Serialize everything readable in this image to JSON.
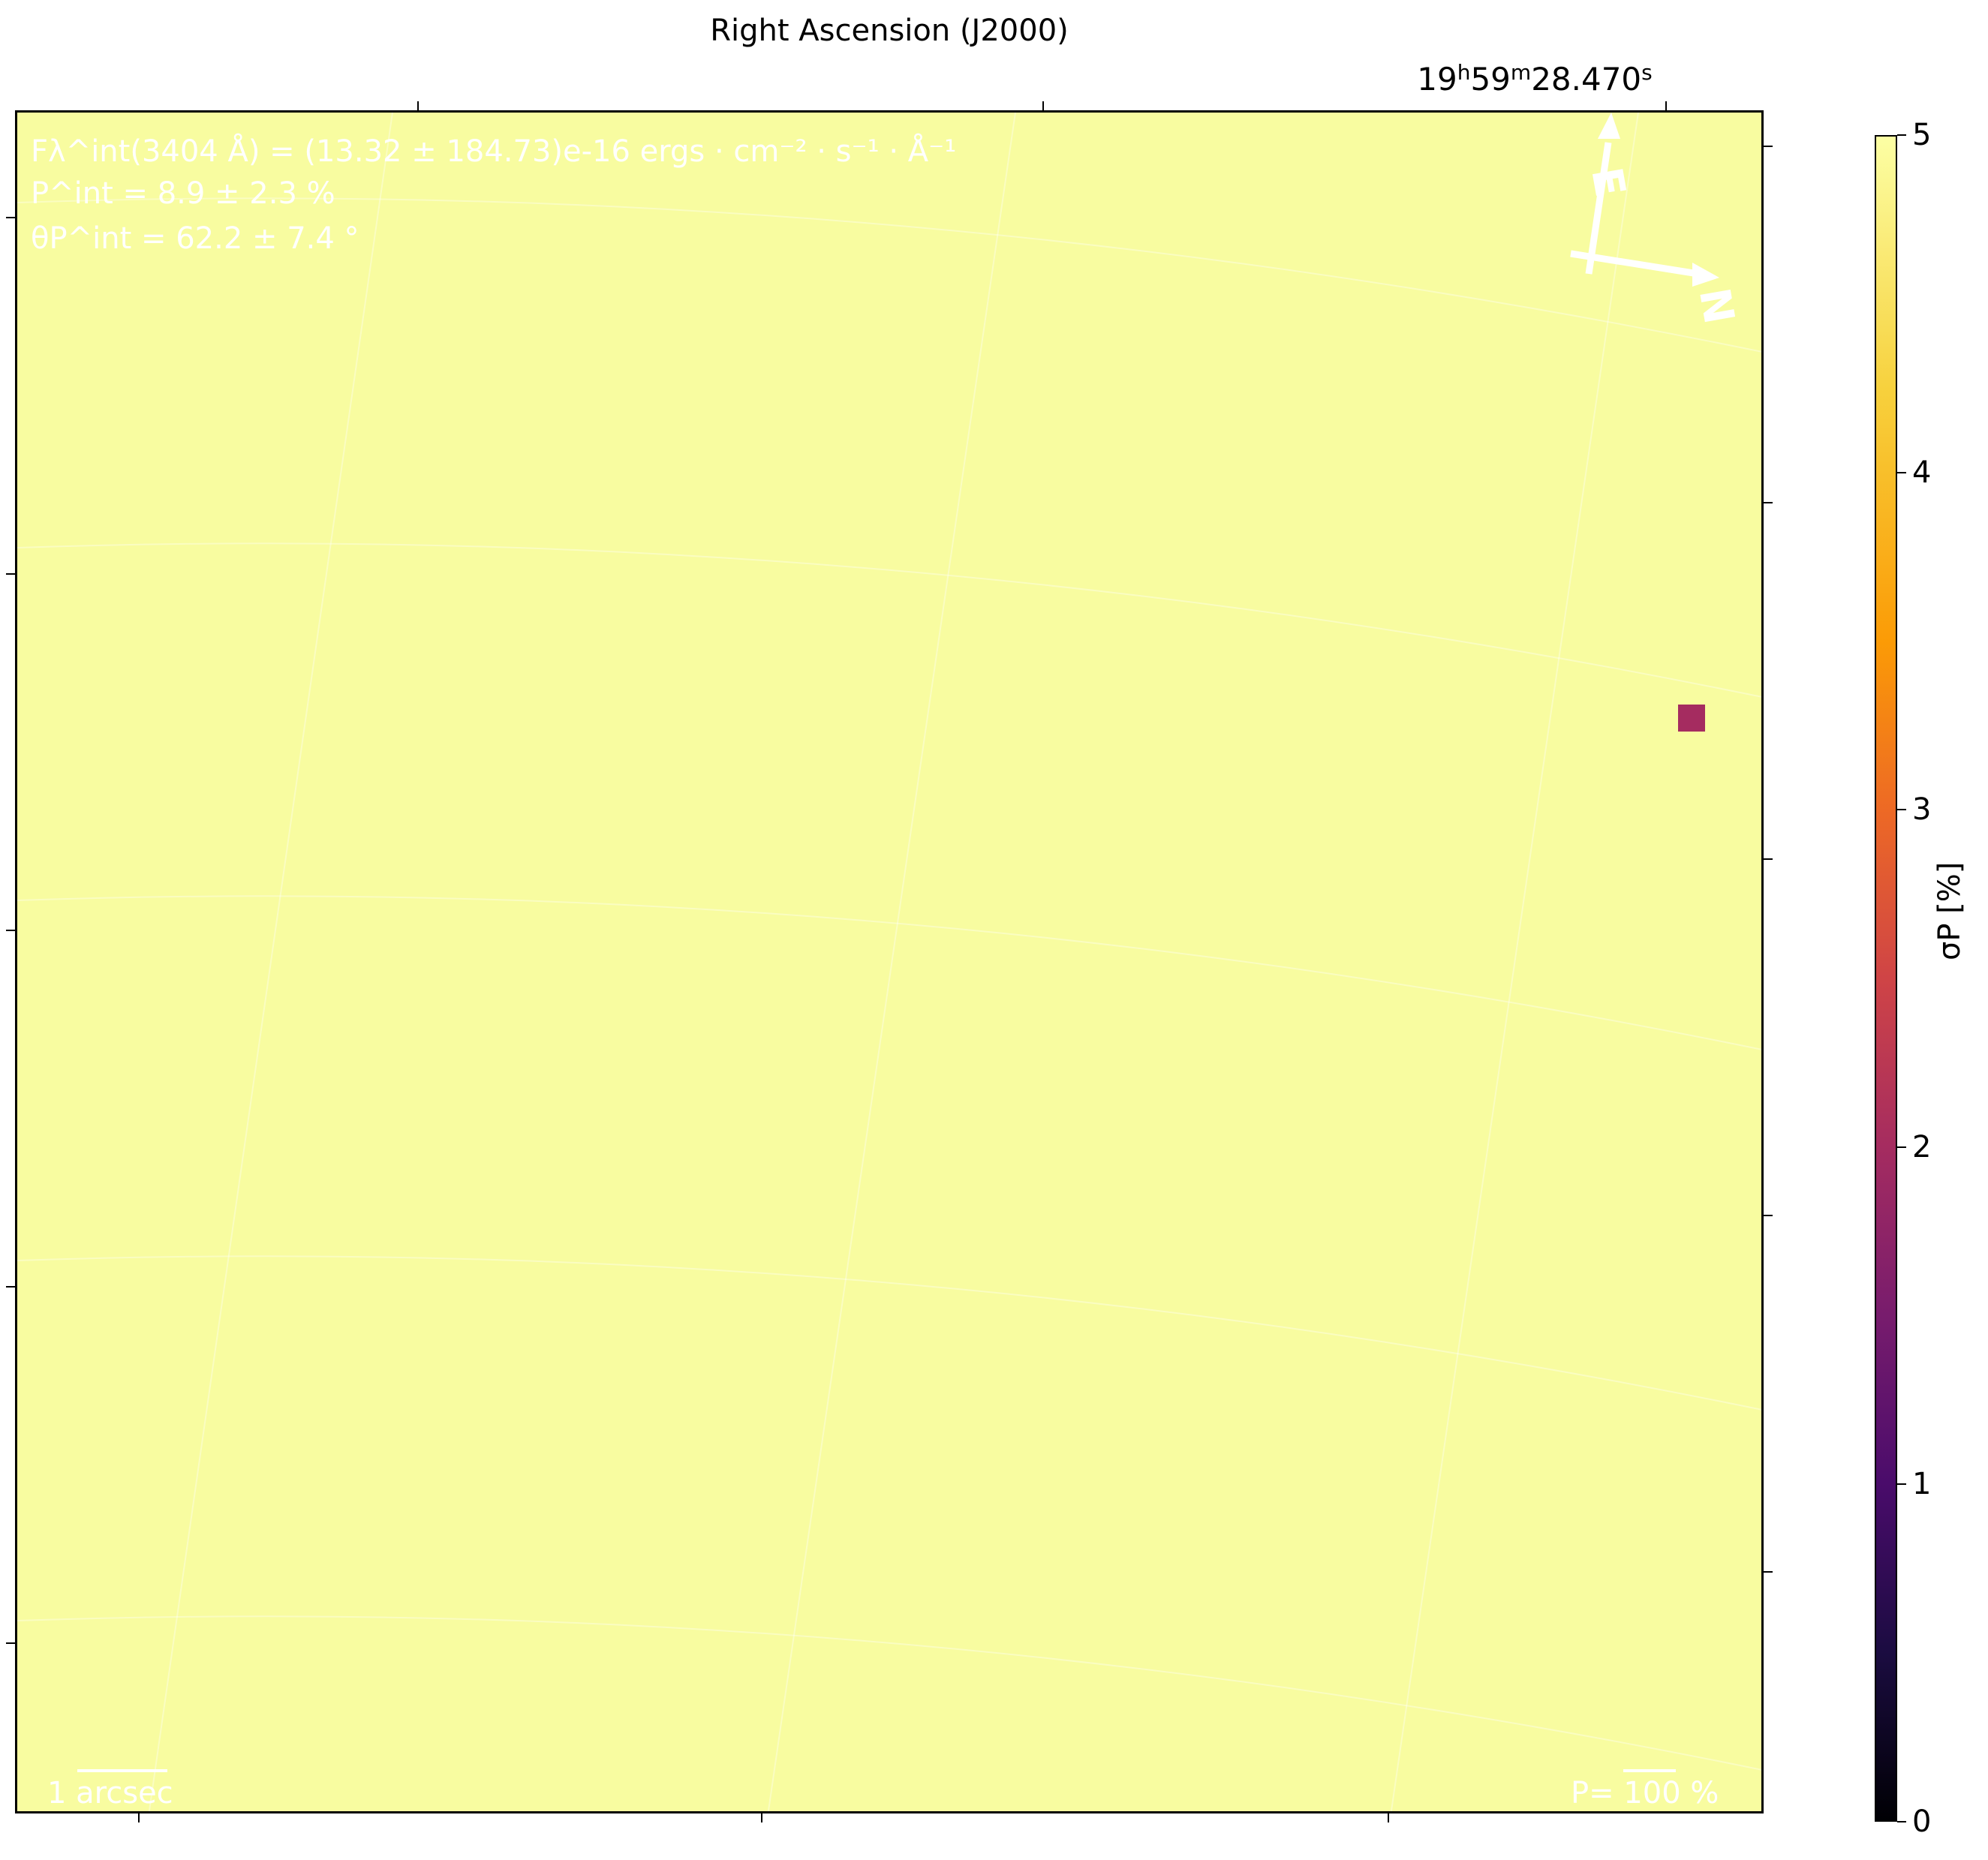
{
  "chart_data": {
    "type": "heatmap",
    "title": "",
    "xlabel": "Right Ascension (J2000)",
    "top_tick_label": {
      "h": "19",
      "m": "59",
      "s": "28.470"
    },
    "colorbar": {
      "label": "σP [%]",
      "range": [
        0,
        5
      ],
      "ticks": [
        "0",
        "1",
        "2",
        "3",
        "4",
        "5"
      ],
      "colormap": "inferno"
    },
    "background_value": 5,
    "highlight_pixel": {
      "value": 2.0,
      "color": "#a52c60"
    },
    "annotations": {
      "flux": "Fλ^int(3404 Å) = (13.32 ± 184.73)e-16 ergs · cm⁻² · s⁻¹ · Å⁻¹",
      "pol": "P^int = 8.9 ± 2.3 %",
      "angle": "θP^int = 62.2 ± 7.4 °",
      "scale_bar": "1 arcsec",
      "pol_scale": "P= 100 %",
      "compass": {
        "east": "E",
        "north": "N"
      }
    }
  }
}
